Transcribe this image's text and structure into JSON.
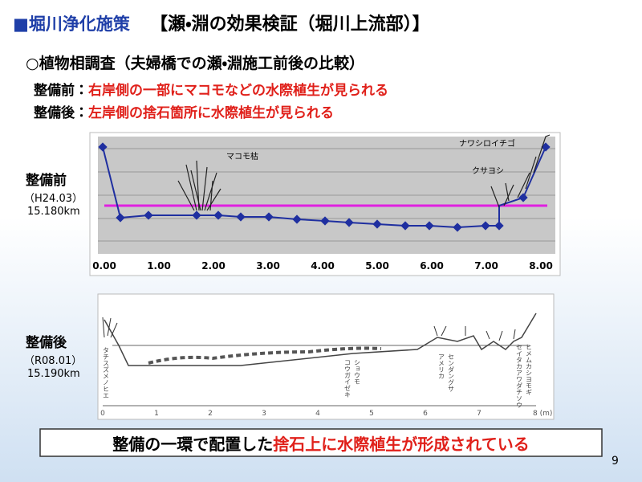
{
  "header": {
    "marker": "■",
    "title": "堀川浄化施策",
    "subtitle": "【瀬・淵の効果検証（堀川上流部）】"
  },
  "section": {
    "heading": "○植物相調査（夫婦橋での瀬・淵施工前後の比較）",
    "items": [
      {
        "label": "整備前：",
        "text": "右岸側の一部にマコモなどの水際植生が見られる"
      },
      {
        "label": "整備後：",
        "text": "左岸側の捨石箇所に水際植生が見られる"
      }
    ]
  },
  "before": {
    "label": "整備前",
    "date": "（H24.03）",
    "distance": "15.180km",
    "axis_labels": [
      "0.00",
      "1.00",
      "2.00",
      "3.00",
      "4.00",
      "5.00",
      "6.00",
      "7.00",
      "8.00"
    ],
    "annotations": [
      "マコモ枯",
      "ナワシロイチゴ",
      "クサヨシ"
    ]
  },
  "after": {
    "label": "整備後",
    "date": "（R08.01）",
    "distance": "15.190km",
    "axis_labels": [
      "0",
      "1",
      "2",
      "3",
      "4",
      "5",
      "6",
      "7",
      "8 (m)"
    ],
    "annotations": [
      "タチスズメノヒエ",
      "コウガイゼキ",
      "ショウモ",
      "アメリカ",
      "センダングサ",
      "セイタカアワダチソウ",
      "ヒメムカシヨモギ"
    ]
  },
  "footer": {
    "text": "整備の一環で配置した",
    "highlight": "捨石上に水際植生が形成されている"
  },
  "page_number": "9"
}
